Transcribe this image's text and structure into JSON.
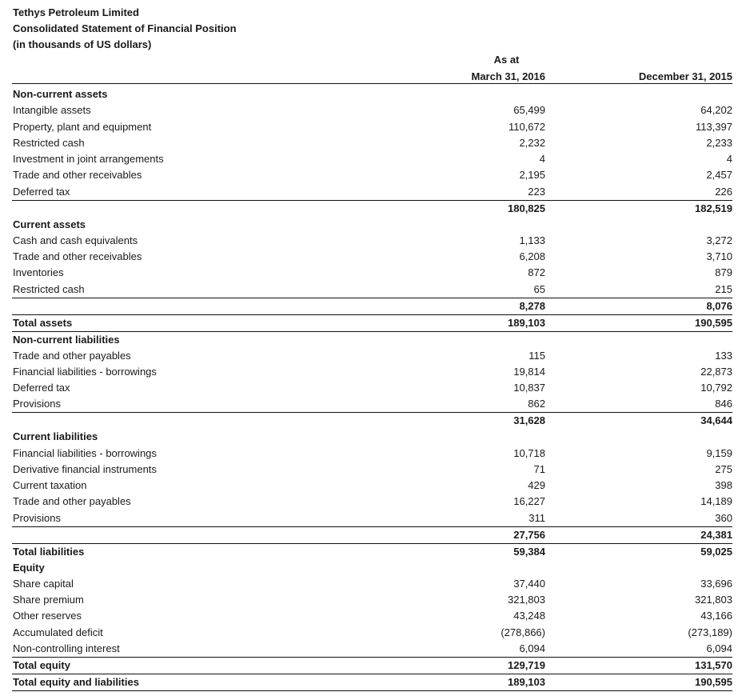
{
  "header": {
    "company": "Tethys Petroleum Limited",
    "statement": "Consolidated Statement of Financial Position",
    "units": "(in thousands of US dollars)",
    "as_at": "As at",
    "col1": "March 31, 2016",
    "col2": "December 31, 2015"
  },
  "rows": [
    {
      "label": "Non-current assets",
      "v1": "",
      "v2": "",
      "style": "b"
    },
    {
      "label": "Intangible assets",
      "v1": "65,499",
      "v2": "64,202",
      "style": ""
    },
    {
      "label": "Property, plant and equipment",
      "v1": "110,672",
      "v2": "113,397",
      "style": ""
    },
    {
      "label": "Restricted cash",
      "v1": "2,232",
      "v2": "2,233",
      "style": ""
    },
    {
      "label": "Investment in joint arrangements",
      "v1": "4",
      "v2": "4",
      "style": ""
    },
    {
      "label": "Trade and other receivables",
      "v1": "2,195",
      "v2": "2,457",
      "style": ""
    },
    {
      "label": "Deferred tax",
      "v1": "223",
      "v2": "226",
      "style": ""
    },
    {
      "label": "",
      "v1": "180,825",
      "v2": "182,519",
      "style": "b bt"
    },
    {
      "label": "Current assets",
      "v1": "",
      "v2": "",
      "style": "b"
    },
    {
      "label": "Cash and cash equivalents",
      "v1": "1,133",
      "v2": "3,272",
      "style": ""
    },
    {
      "label": "Trade and other receivables",
      "v1": "6,208",
      "v2": "3,710",
      "style": ""
    },
    {
      "label": "Inventories",
      "v1": "872",
      "v2": "879",
      "style": ""
    },
    {
      "label": "Restricted cash",
      "v1": "65",
      "v2": "215",
      "style": ""
    },
    {
      "label": "",
      "v1": "8,278",
      "v2": "8,076",
      "style": "b bt"
    },
    {
      "label": "Total assets",
      "v1": "189,103",
      "v2": "190,595",
      "style": "b bt bb"
    },
    {
      "label": "Non-current liabilities",
      "v1": "",
      "v2": "",
      "style": "b"
    },
    {
      "label": "Trade and other payables",
      "v1": "115",
      "v2": "133",
      "style": ""
    },
    {
      "label": "Financial liabilities - borrowings",
      "v1": "19,814",
      "v2": "22,873",
      "style": ""
    },
    {
      "label": "Deferred tax",
      "v1": "10,837",
      "v2": "10,792",
      "style": ""
    },
    {
      "label": "Provisions",
      "v1": "862",
      "v2": "846",
      "style": ""
    },
    {
      "label": "",
      "v1": "31,628",
      "v2": "34,644",
      "style": "b bt"
    },
    {
      "label": "Current liabilities",
      "v1": "",
      "v2": "",
      "style": "b"
    },
    {
      "label": "Financial liabilities - borrowings",
      "v1": "10,718",
      "v2": "9,159",
      "style": ""
    },
    {
      "label": "Derivative financial instruments",
      "v1": "71",
      "v2": "275",
      "style": ""
    },
    {
      "label": "Current taxation",
      "v1": "429",
      "v2": "398",
      "style": ""
    },
    {
      "label": "Trade and other payables",
      "v1": "16,227",
      "v2": "14,189",
      "style": ""
    },
    {
      "label": "Provisions",
      "v1": "311",
      "v2": "360",
      "style": ""
    },
    {
      "label": "",
      "v1": "27,756",
      "v2": "24,381",
      "style": "b bt"
    },
    {
      "label": "Total liabilities",
      "v1": "59,384",
      "v2": "59,025",
      "style": "b bt"
    },
    {
      "label": "Equity",
      "v1": "",
      "v2": "",
      "style": "b"
    },
    {
      "label": "Share capital",
      "v1": "37,440",
      "v2": "33,696",
      "style": ""
    },
    {
      "label": "Share premium",
      "v1": "321,803",
      "v2": "321,803",
      "style": ""
    },
    {
      "label": "Other reserves",
      "v1": "43,248",
      "v2": "43,166",
      "style": ""
    },
    {
      "label": "Accumulated deficit",
      "v1": "(278,866)",
      "v2": "(273,189)",
      "style": ""
    },
    {
      "label": "Non-controlling interest",
      "v1": "6,094",
      "v2": "6,094",
      "style": ""
    },
    {
      "label": "Total equity",
      "v1": "129,719",
      "v2": "131,570",
      "style": "b bt"
    },
    {
      "label": "Total equity and liabilities",
      "v1": "189,103",
      "v2": "190,595",
      "style": "b bt bb"
    }
  ]
}
